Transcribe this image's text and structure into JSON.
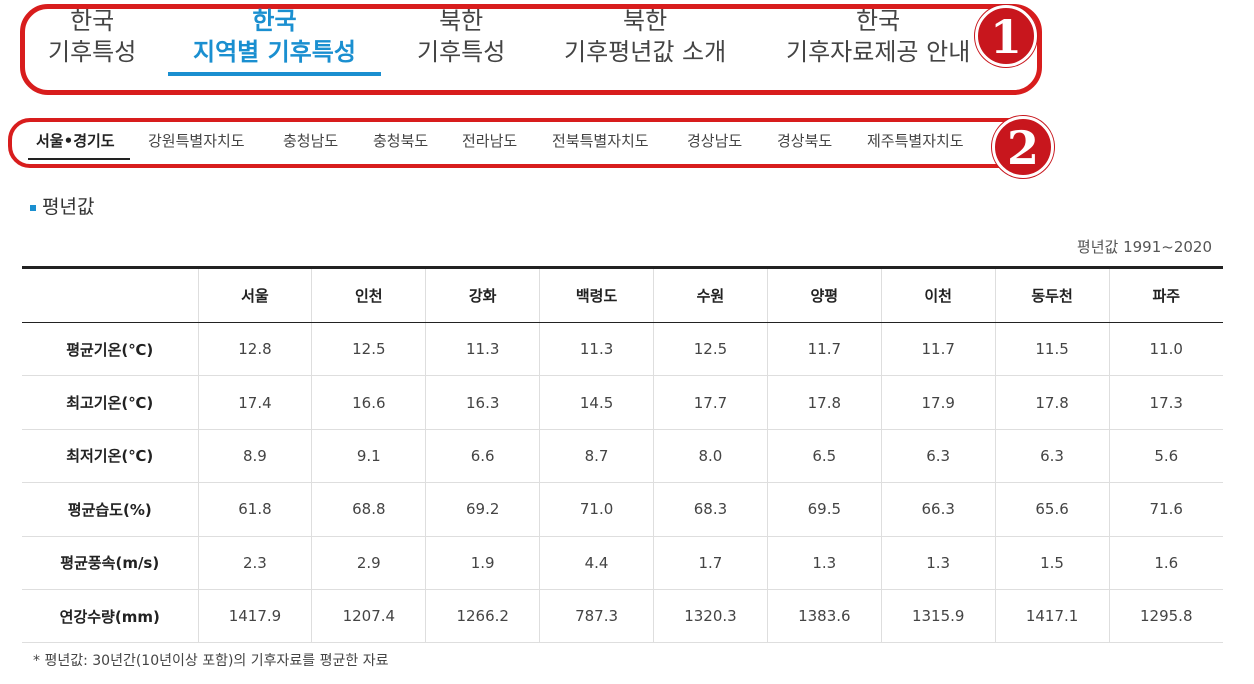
{
  "top_tabs": [
    {
      "line1": "한국",
      "line2": "기후특성",
      "active": false
    },
    {
      "line1": "한국",
      "line2": "지역별 기후특성",
      "active": true
    },
    {
      "line1": "북한",
      "line2": "기후특성",
      "active": false
    },
    {
      "line1": "북한",
      "line2": "기후평년값 소개",
      "active": false
    },
    {
      "line1": "한국",
      "line2": "기후자료제공 안내",
      "active": false
    }
  ],
  "region_tabs": [
    "서울•경기도",
    "강원특별자치도",
    "충청남도",
    "충청북도",
    "전라남도",
    "전북특별자치도",
    "경상남도",
    "경상북도",
    "제주특별자치도"
  ],
  "annotations": {
    "badge1": "1",
    "badge2": "2"
  },
  "section": {
    "title": "평년값",
    "period": "평년값 1991~2020"
  },
  "table": {
    "columns": [
      "서울",
      "인천",
      "강화",
      "백령도",
      "수원",
      "양평",
      "이천",
      "동두천",
      "파주"
    ],
    "rows": [
      {
        "label": "평균기온(℃)",
        "values": [
          "12.8",
          "12.5",
          "11.3",
          "11.3",
          "12.5",
          "11.7",
          "11.7",
          "11.5",
          "11.0"
        ]
      },
      {
        "label": "최고기온(℃)",
        "values": [
          "17.4",
          "16.6",
          "16.3",
          "14.5",
          "17.7",
          "17.8",
          "17.9",
          "17.8",
          "17.3"
        ]
      },
      {
        "label": "최저기온(℃)",
        "values": [
          "8.9",
          "9.1",
          "6.6",
          "8.7",
          "8.0",
          "6.5",
          "6.3",
          "6.3",
          "5.6"
        ]
      },
      {
        "label": "평균습도(%)",
        "values": [
          "61.8",
          "68.8",
          "69.2",
          "71.0",
          "68.3",
          "69.5",
          "66.3",
          "65.6",
          "71.6"
        ]
      },
      {
        "label": "평균풍속(m/s)",
        "values": [
          "2.3",
          "2.9",
          "1.9",
          "4.4",
          "1.7",
          "1.3",
          "1.3",
          "1.5",
          "1.6"
        ]
      },
      {
        "label": "연강수량(mm)",
        "values": [
          "1417.9",
          "1207.4",
          "1266.2",
          "787.3",
          "1320.3",
          "1383.6",
          "1315.9",
          "1417.1",
          "1295.8"
        ]
      }
    ]
  },
  "footnote": "* 평년값: 30년간(10년이상 포함)의 기후자료를 평균한 자료",
  "colors": {
    "accent": "#1a8fd0",
    "annotation": "#d81d1d"
  }
}
